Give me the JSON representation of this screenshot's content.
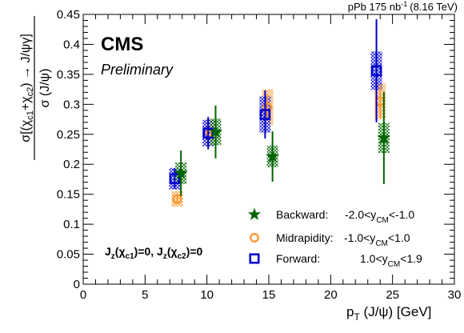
{
  "header": {
    "collision": "pPb 175 nb",
    "lumi_exp": "-1",
    "energy": "(8.16 TeV)"
  },
  "brand": {
    "experiment": "CMS",
    "status": "Preliminary"
  },
  "annotation": {
    "text": "J_z(χ_c1)=0, J_z(χ_c2)=0"
  },
  "axis_text": {
    "ylabel": "σ[(χ_c1+χ_c2) → J/ψγ] / σ (J/ψ)",
    "xlabel": "p_T (J/ψ) [GeV]"
  },
  "chart_data": {
    "type": "scatter",
    "xlabel": "p_T (J/ψ) [GeV]",
    "ylabel": "σ[(χ_c1+χ_c2) → J/ψγ] / σ (J/ψ)",
    "xlim": [
      0,
      30
    ],
    "ylim": [
      0,
      0.45
    ],
    "xticks": [
      0,
      5,
      10,
      15,
      20,
      25,
      30
    ],
    "yticks": [
      0,
      0.05,
      0.1,
      0.15,
      0.2,
      0.25,
      0.3,
      0.35,
      0.4,
      0.45
    ],
    "legend_position": "bottom-right",
    "series": [
      {
        "name": "Backward:",
        "range_label": "-2.0<y_CM<-1.0",
        "color": "#006400",
        "marker": "star",
        "points": [
          {
            "x": 7.9,
            "y": 0.185,
            "stat_lo": 0.038,
            "stat_hi": 0.038,
            "syst": 0.018
          },
          {
            "x": 10.7,
            "y": 0.254,
            "stat_lo": 0.044,
            "stat_hi": 0.044,
            "syst": 0.022
          },
          {
            "x": 15.3,
            "y": 0.213,
            "stat_lo": 0.042,
            "stat_hi": 0.042,
            "syst": 0.018
          },
          {
            "x": 24.3,
            "y": 0.244,
            "stat_lo": 0.077,
            "stat_hi": 0.077,
            "syst": 0.025
          }
        ]
      },
      {
        "name": "Midrapidity:",
        "range_label": "-1.0<y_CM<1.0",
        "color": "#ff9933",
        "marker": "open-circle",
        "points": [
          {
            "x": 7.6,
            "y": 0.142,
            "stat_lo": 0.008,
            "stat_hi": 0.008,
            "syst": 0.013
          },
          {
            "x": 10.3,
            "y": 0.253,
            "stat_lo": 0.009,
            "stat_hi": 0.009,
            "syst": 0.022
          },
          {
            "x": 14.9,
            "y": 0.295,
            "stat_lo": 0.022,
            "stat_hi": 0.022,
            "syst": 0.03
          },
          {
            "x": 24.0,
            "y": 0.305,
            "stat_lo": 0.028,
            "stat_hi": 0.028,
            "syst": 0.03
          }
        ]
      },
      {
        "name": "Forward:",
        "range_label": "1.0<y_CM<1.9",
        "color": "#0000cc",
        "marker": "open-square",
        "points": [
          {
            "x": 7.4,
            "y": 0.176,
            "stat_lo": 0.017,
            "stat_hi": 0.017,
            "syst": 0.018
          },
          {
            "x": 10.1,
            "y": 0.252,
            "stat_lo": 0.027,
            "stat_hi": 0.027,
            "syst": 0.022
          },
          {
            "x": 14.7,
            "y": 0.283,
            "stat_lo": 0.04,
            "stat_hi": 0.04,
            "syst": 0.03
          },
          {
            "x": 23.7,
            "y": 0.356,
            "stat_lo": 0.086,
            "stat_hi": 0.086,
            "syst": 0.032
          }
        ]
      }
    ]
  }
}
